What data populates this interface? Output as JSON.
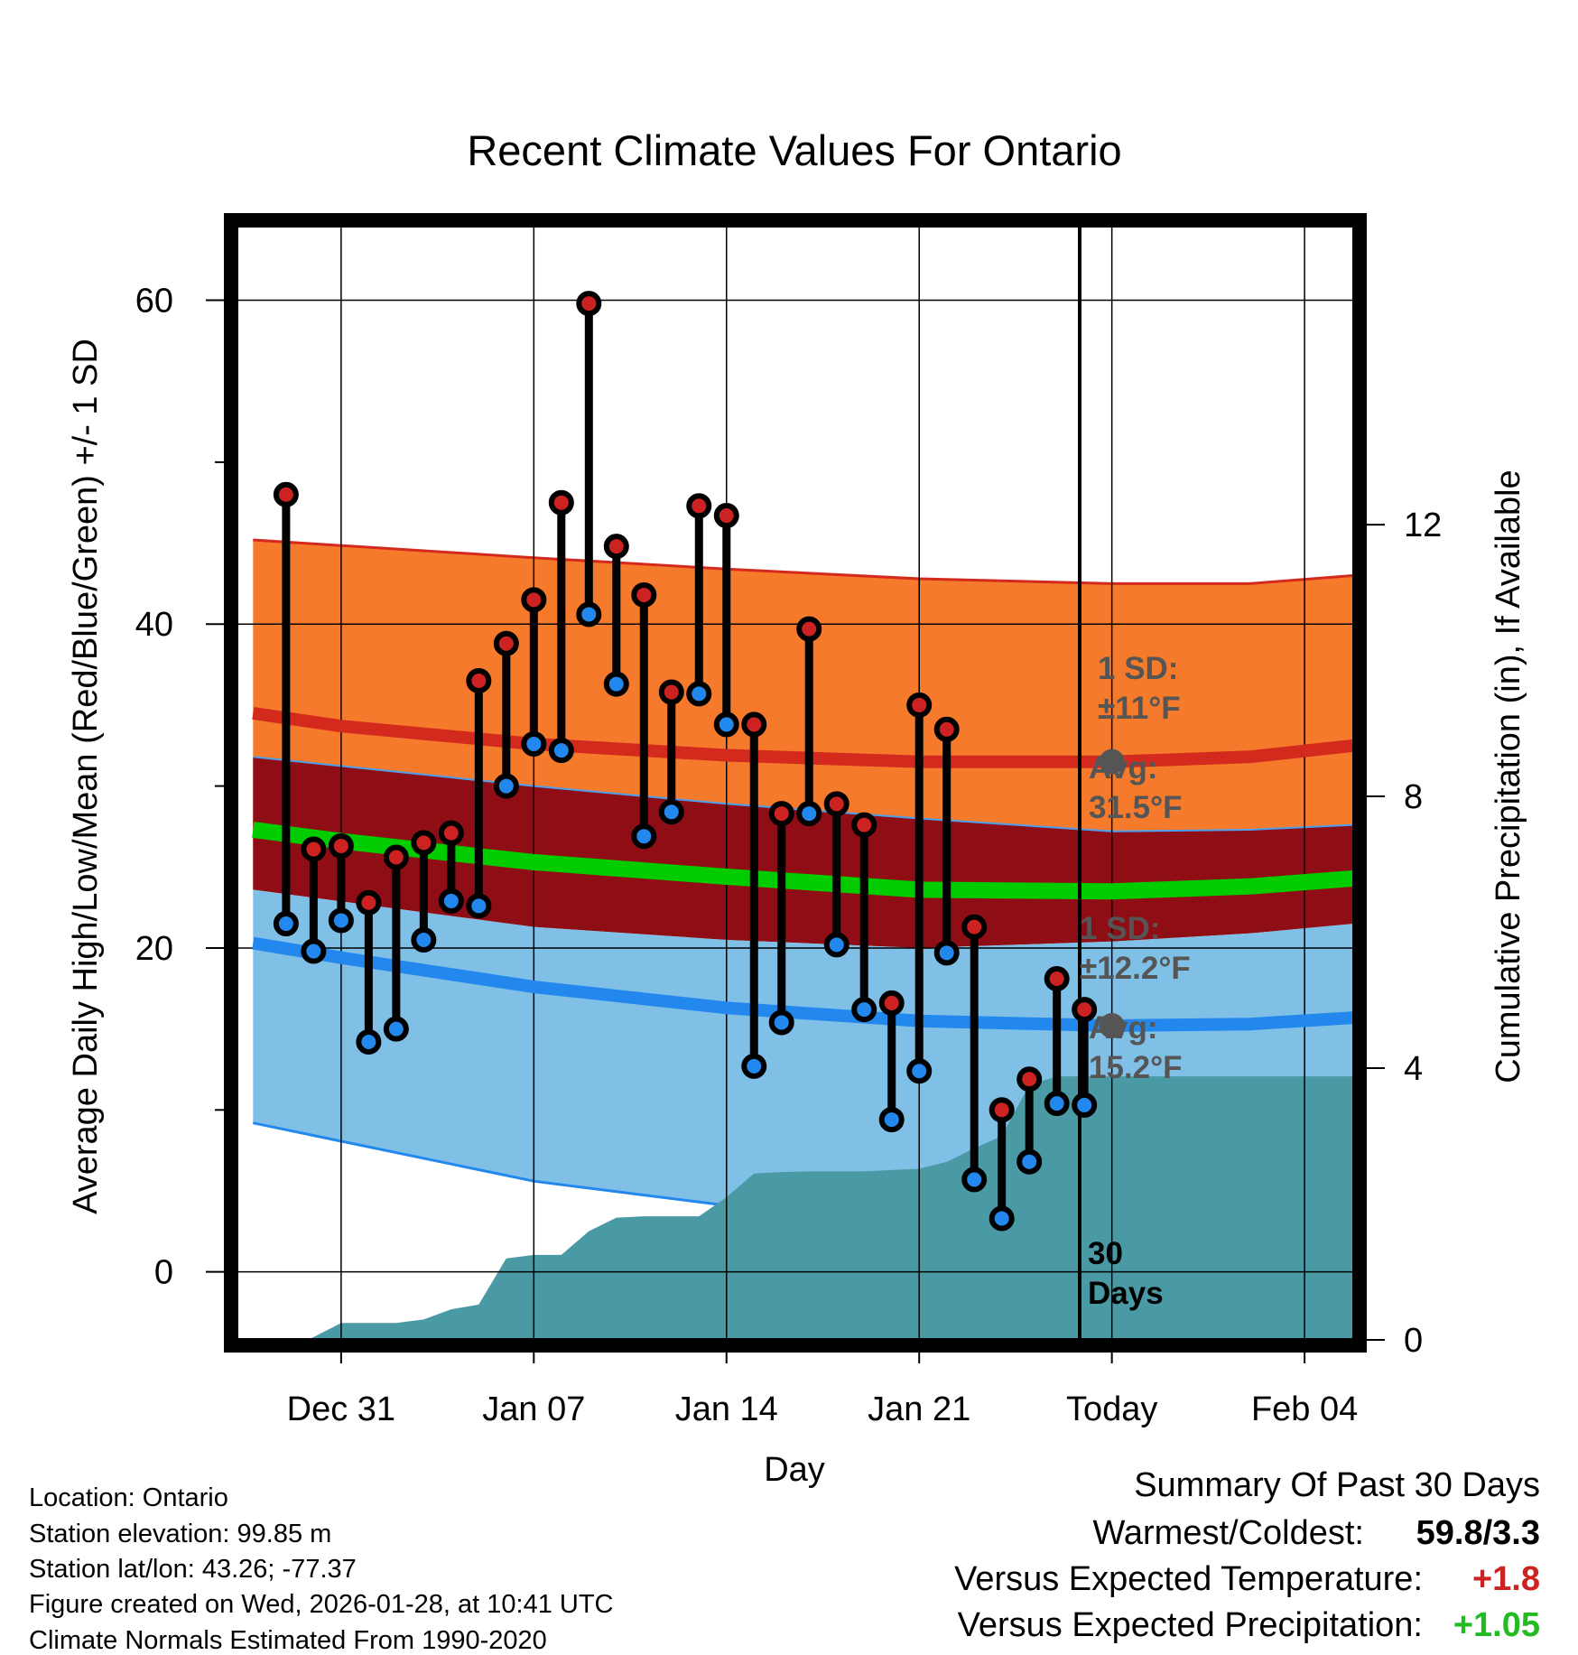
{
  "chart_data": {
    "type": "line",
    "title": "Recent Climate Values For Ontario",
    "xlabel": "Day",
    "ylabel": "Average Daily High/Low/Mean (Red/Blue/Green) +/- 1 SD",
    "y2label": "Cumulative Precipitation (in), If Available",
    "xlim_days": [
      -31.8,
      8.8
    ],
    "ylim": [
      -4.2,
      64.6
    ],
    "y2lim": [
      0,
      16.4
    ],
    "x_ticks": [
      {
        "day": -28,
        "label": "Dec 31"
      },
      {
        "day": -21,
        "label": "Jan 07"
      },
      {
        "day": -14,
        "label": "Jan 14"
      },
      {
        "day": -7,
        "label": "Jan 21"
      },
      {
        "day": 0,
        "label": "Today"
      },
      {
        "day": 7,
        "label": "Feb 04"
      }
    ],
    "y_ticks": [
      0,
      20,
      40,
      60
    ],
    "y_minor_ticks": [
      10,
      30,
      50
    ],
    "y2_ticks": [
      0,
      4,
      8,
      12
    ],
    "grid": true,
    "days": [
      -30,
      -29,
      -28,
      -27,
      -26,
      -25,
      -24,
      -23,
      -22,
      -21,
      -20,
      -19,
      -18,
      -17,
      -16,
      -15,
      -14,
      -13,
      -12,
      -11,
      -10,
      -9,
      -8,
      -7,
      -6,
      -5,
      -4,
      -3,
      -2,
      -1
    ],
    "series": [
      {
        "name": "Daily High",
        "color": "#cc2222",
        "values": [
          48.0,
          26.1,
          26.3,
          22.8,
          25.6,
          26.5,
          27.1,
          36.5,
          38.8,
          41.5,
          47.5,
          59.8,
          44.8,
          41.8,
          35.8,
          47.3,
          46.7,
          33.8,
          28.3,
          39.7,
          28.9,
          27.6,
          16.6,
          35.0,
          33.5,
          21.3,
          10.0,
          11.9,
          18.1,
          16.2
        ]
      },
      {
        "name": "Daily Low",
        "color": "#2288ee",
        "values": [
          21.5,
          19.8,
          21.7,
          14.2,
          15.0,
          20.5,
          22.9,
          22.6,
          30.0,
          32.6,
          32.2,
          40.6,
          36.3,
          26.9,
          28.4,
          35.7,
          33.8,
          12.7,
          15.4,
          28.3,
          20.2,
          16.2,
          9.4,
          12.4,
          19.7,
          5.7,
          3.3,
          6.8,
          10.4,
          10.3
        ]
      },
      {
        "name": "Normal High",
        "color": "#cc2222",
        "day_points": [
          -31.2,
          -28,
          -21,
          -14,
          -7,
          0,
          5,
          8.8
        ],
        "values": [
          34.5,
          33.7,
          32.6,
          31.9,
          31.5,
          31.5,
          31.8,
          32.5
        ]
      },
      {
        "name": "Normal High +1 SD",
        "day_points": [
          -31.2,
          -21,
          -14,
          -7,
          0,
          5,
          8.8
        ],
        "values": [
          45.2,
          44.1,
          43.4,
          42.8,
          42.5,
          42.5,
          43.0
        ]
      },
      {
        "name": "Normal High -1 SD",
        "day_points": [
          -31.2,
          -21,
          -14,
          -7,
          0,
          5,
          8.8
        ],
        "values": [
          31.8,
          30.0,
          28.9,
          28.0,
          27.2,
          27.3,
          27.6
        ]
      },
      {
        "name": "Normal Mean",
        "color": "#00cc00",
        "day_points": [
          -31.2,
          -28,
          -21,
          -14,
          -7,
          0,
          5,
          8.8
        ],
        "values": [
          27.3,
          26.6,
          25.3,
          24.4,
          23.6,
          23.5,
          23.8,
          24.3
        ]
      },
      {
        "name": "Normal Low",
        "color": "#2288ee",
        "day_points": [
          -31.2,
          -28,
          -21,
          -14,
          -7,
          0,
          5,
          8.8
        ],
        "values": [
          20.3,
          19.4,
          17.6,
          16.3,
          15.5,
          15.2,
          15.3,
          15.7
        ]
      },
      {
        "name": "Normal Low +1 SD",
        "day_points": [
          -31.2,
          -21,
          -14,
          -7,
          0,
          5,
          8.8
        ],
        "values": [
          23.6,
          21.3,
          20.5,
          20.0,
          20.4,
          20.9,
          21.5
        ]
      },
      {
        "name": "Normal Low -1 SD",
        "day_points": [
          -31.2,
          -21,
          -14,
          -7,
          -3,
          0,
          5,
          8.8
        ],
        "values": [
          9.2,
          5.6,
          4.1,
          3.2,
          3.1,
          3.0,
          3.1,
          3.4
        ]
      },
      {
        "name": "Cumulative Precipitation",
        "color": "#4a9aa5",
        "axis": "y2",
        "day_points": [
          -29.2,
          -28,
          -26,
          -25,
          -24,
          -23,
          -22,
          -21,
          -20,
          -19,
          -18,
          -17,
          -16,
          -15,
          -14,
          -13,
          -12,
          -11,
          -10,
          -9,
          -8,
          -7,
          -6,
          -5,
          -4,
          -3,
          -2,
          -1,
          0,
          8.8
        ],
        "values": [
          0,
          0.25,
          0.25,
          0.3,
          0.45,
          0.52,
          1.2,
          1.25,
          1.25,
          1.6,
          1.8,
          1.82,
          1.82,
          1.82,
          2.1,
          2.45,
          2.47,
          2.48,
          2.48,
          2.48,
          2.5,
          2.52,
          2.62,
          2.82,
          3.0,
          3.75,
          3.88,
          3.88,
          3.88,
          3.88
        ]
      }
    ],
    "annotations": [
      {
        "text_lines": [
          "1 SD:",
          "±11°F"
        ],
        "near": "normal high band"
      },
      {
        "text_lines": [
          "Avg:",
          "31.5°F"
        ],
        "near": "normal high at today",
        "value": 31.5
      },
      {
        "text_lines": [
          "1 SD:",
          "±12.2°F"
        ],
        "near": "normal low band"
      },
      {
        "text_lines": [
          "Avg:",
          "15.2°F"
        ],
        "near": "normal low at today",
        "value": 15.2
      },
      {
        "text_lines": [
          "30",
          "Days"
        ],
        "near": "today line"
      }
    ]
  },
  "info": {
    "location": "Location: Ontario",
    "elevation": "Station elevation: 99.85 m",
    "latlon": "Station lat/lon: 43.26; -77.37",
    "created": "Figure created on Wed, 2026-01-28, at 10:41 UTC",
    "normals": "Climate Normals Estimated From 1990-2020"
  },
  "summary": {
    "title": "Summary Of Past 30 Days",
    "warmest_label": "Warmest/Coldest:",
    "warmest_value": "59.8/3.3",
    "temp_label": "Versus Expected Temperature:",
    "temp_value": "+1.8",
    "temp_color": "#cc2222",
    "precip_label": "Versus Expected Precipitation:",
    "precip_value": "+1.05",
    "precip_color": "#22bb22"
  },
  "colors": {
    "high_band": "#f57a2c",
    "inner_band": "#8f0e16",
    "low_band": "#80c0e6",
    "precip": "#4a9aa5",
    "high_marker": "#cc2222",
    "low_marker": "#2288ee",
    "mean_line": "#00cc00",
    "annotation": "#555555"
  }
}
